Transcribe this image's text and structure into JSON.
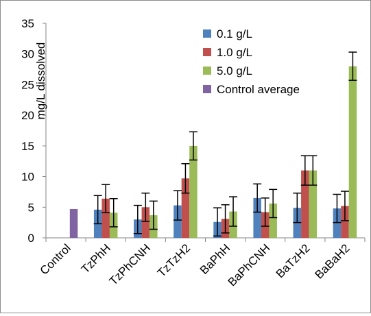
{
  "chart_data": {
    "type": "bar",
    "title": "",
    "xlabel": "",
    "ylabel": "mg/L dissolved",
    "ylim": [
      0,
      35
    ],
    "yticks": [
      "0",
      "5",
      "10",
      "15",
      "20",
      "25",
      "30",
      "35"
    ],
    "categories": [
      "Control",
      "TzPhH",
      "TzPhCNH",
      "TzTzH2",
      "BaPhH",
      "BaPhCNH",
      "BaTzH2",
      "BaBaH2"
    ],
    "grid": false,
    "legend_position": "top-right",
    "series": [
      {
        "name": "0.1 g/L",
        "color": "#4F81BD",
        "values": [
          null,
          4.6,
          3.0,
          5.3,
          2.6,
          6.5,
          4.9,
          4.8
        ],
        "errors": [
          null,
          2.3,
          2.3,
          2.4,
          2.3,
          2.3,
          2.4,
          2.3
        ]
      },
      {
        "name": "1.0 g/L",
        "color": "#C0504D",
        "values": [
          null,
          6.4,
          5.0,
          9.7,
          3.1,
          4.2,
          11.0,
          5.2
        ],
        "errors": [
          null,
          2.3,
          2.3,
          2.4,
          2.3,
          2.3,
          2.4,
          2.4
        ]
      },
      {
        "name": "5.0 g/L",
        "color": "#9BBB59",
        "values": [
          null,
          4.1,
          3.7,
          15.0,
          4.3,
          5.6,
          11.0,
          28.0
        ],
        "errors": [
          null,
          2.3,
          2.3,
          2.3,
          2.4,
          2.3,
          2.4,
          2.3
        ]
      },
      {
        "name": "Control average",
        "color": "#8064A2",
        "values": [
          4.7,
          null,
          null,
          null,
          null,
          null,
          null,
          null
        ],
        "errors": [
          null,
          null,
          null,
          null,
          null,
          null,
          null,
          null
        ]
      }
    ]
  }
}
